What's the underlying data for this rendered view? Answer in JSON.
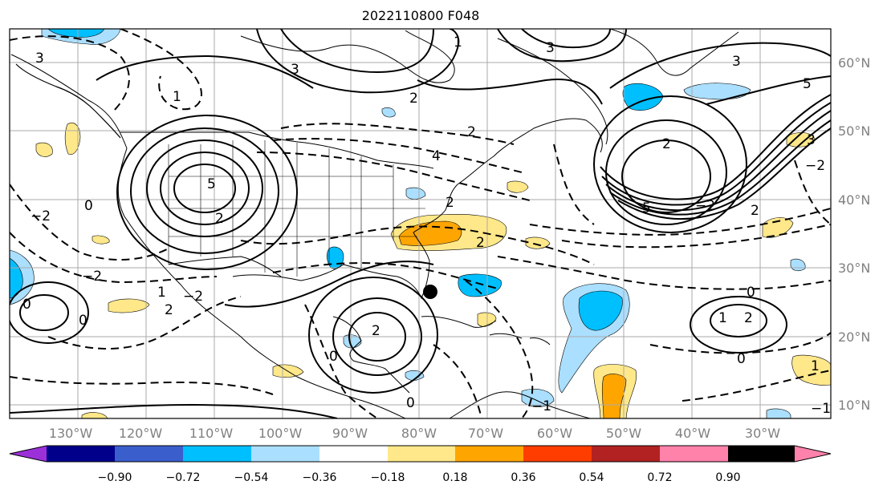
{
  "title": "2022110800 F048",
  "lon_labels": [
    "130°W",
    "120°W",
    "110°W",
    "100°W",
    "90°W",
    "80°W",
    "70°W",
    "60°W",
    "50°W",
    "40°W",
    "30°W"
  ],
  "lat_labels": [
    "10°N",
    "20°N",
    "30°N",
    "40°N",
    "50°N",
    "60°N"
  ],
  "colorbar": {
    "colors": [
      "#9b30d9",
      "#00008b",
      "#3a5fcd",
      "#00bfff",
      "#aadfff",
      "#ffffff",
      "#ffe88a",
      "#ffa500",
      "#ff3d00",
      "#b22222",
      "#ff82ab"
    ],
    "labels": [
      "−0.90",
      "−0.72",
      "−0.54",
      "−0.36",
      "−0.18",
      "0.18",
      "0.36",
      "0.54",
      "0.72",
      "0.90"
    ]
  },
  "contour_labels": [
    "3",
    "1",
    "2",
    "3",
    "5",
    "2",
    "2",
    "3",
    "1",
    "0",
    "−2",
    "4",
    "5",
    "2",
    "3",
    "5",
    "−2",
    "2",
    "−2",
    "0",
    "3",
    "1",
    "0",
    "2",
    "−1",
    "0",
    "2",
    "−2",
    "−2",
    "1",
    "2",
    "0",
    "0",
    "2",
    "2",
    "−1",
    "1",
    "0"
  ],
  "marker": "storm-center"
}
